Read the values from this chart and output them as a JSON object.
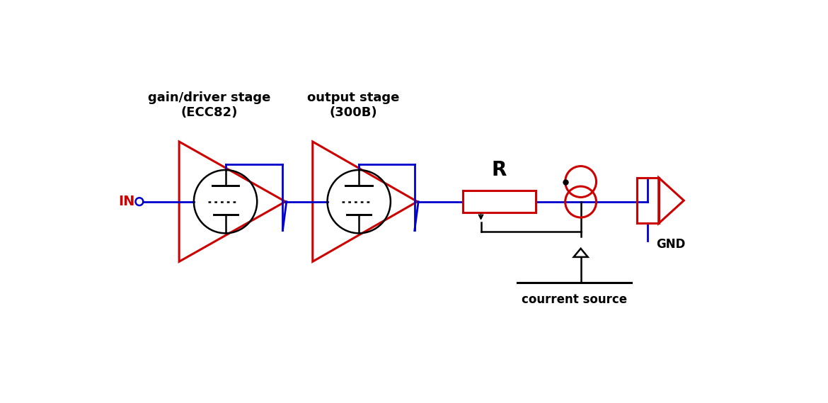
{
  "bg_color": "#ffffff",
  "red": "#cc0000",
  "blue": "#0000cc",
  "black": "#000000",
  "fig_width": 11.7,
  "fig_height": 5.69,
  "title_stage1": "gain/driver stage\n(ECC82)",
  "title_stage2": "output stage\n(300B)",
  "label_R": "R",
  "label_IN": "IN",
  "label_GND": "GND",
  "label_current": "courrent source",
  "dpi": 100
}
